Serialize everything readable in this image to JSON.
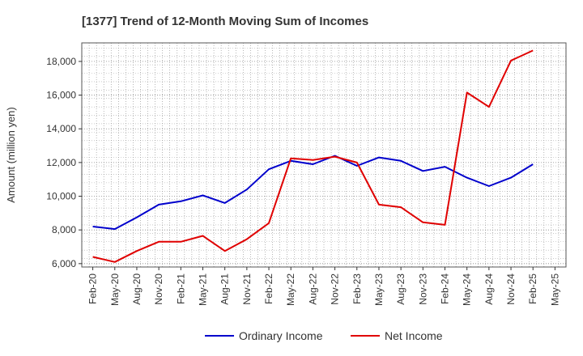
{
  "chart_data": {
    "type": "line",
    "title": "[1377]  Trend of 12-Month Moving Sum of Incomes",
    "xlabel": "",
    "ylabel": "Amount (million yen)",
    "ylim": [
      5800,
      19100
    ],
    "yticks": [
      6000,
      8000,
      10000,
      12000,
      14000,
      16000,
      18000
    ],
    "ytick_labels": [
      "6,000",
      "8,000",
      "10,000",
      "12,000",
      "14,000",
      "16,000",
      "18,000"
    ],
    "categories": [
      "Feb-20",
      "May-20",
      "Aug-20",
      "Nov-20",
      "Feb-21",
      "May-21",
      "Aug-21",
      "Nov-21",
      "Feb-22",
      "May-22",
      "Aug-22",
      "Nov-22",
      "Feb-23",
      "May-23",
      "Aug-23",
      "Nov-23",
      "Feb-24",
      "May-24",
      "Aug-24",
      "Nov-24",
      "Feb-25",
      "May-25"
    ],
    "series": [
      {
        "name": "Ordinary Income",
        "color": "#0000cc",
        "values": [
          8200,
          8050,
          8750,
          9500,
          9700,
          10050,
          9600,
          10400,
          11600,
          12100,
          11900,
          12400,
          11800,
          12300,
          12100,
          11500,
          11750,
          11100,
          10600,
          11100,
          11900,
          null
        ]
      },
      {
        "name": "Net Income",
        "color": "#e00000",
        "values": [
          6400,
          6100,
          6750,
          7300,
          7300,
          7650,
          6750,
          7450,
          8400,
          12250,
          12150,
          12350,
          12000,
          9500,
          9350,
          8450,
          8300,
          16150,
          15300,
          18050,
          18650,
          null
        ]
      }
    ],
    "grid": true,
    "legend_position": "bottom-center"
  }
}
